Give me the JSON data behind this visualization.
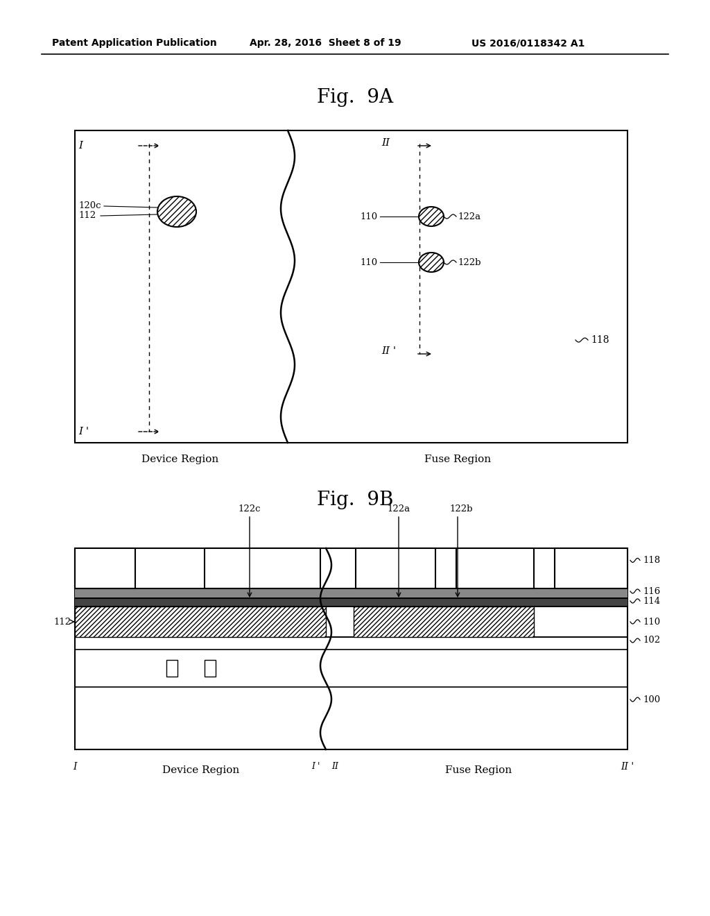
{
  "bg_color": "#ffffff",
  "header_left": "Patent Application Publication",
  "header_center": "Apr. 28, 2016  Sheet 8 of 19",
  "header_right": "US 2016/0118342 A1",
  "fig9a_title": "Fig.  9A",
  "fig9b_title": "Fig.  9B"
}
